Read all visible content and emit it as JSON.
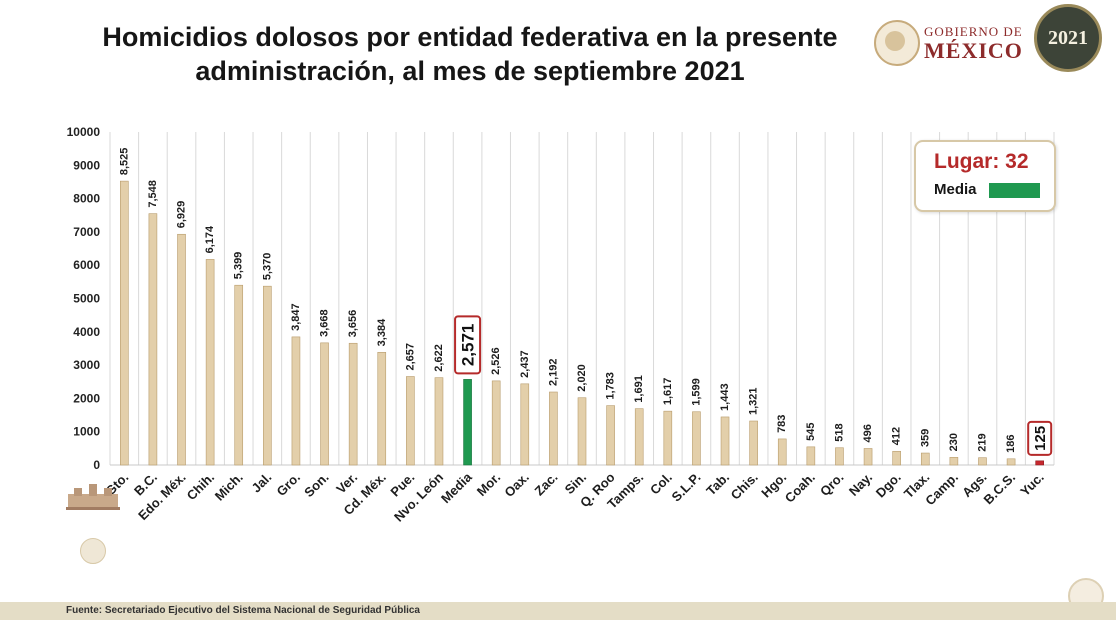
{
  "title": "Homicidios dolosos por entidad federativa en la presente administración, al mes de septiembre 2021",
  "header": {
    "gov_line1": "GOBIERNO DE",
    "gov_line2": "MÉXICO",
    "badge_year": "2021",
    "logo_icons": [
      "mexico-coat-of-arms-icon",
      "year-2021-badge-icon"
    ]
  },
  "legend": {
    "place_label": "Lugar: 32",
    "media_label": "Media"
  },
  "footer": {
    "source": "Fuente: Secretariado Ejecutivo del Sistema Nacional de Seguridad Pública"
  },
  "colors": {
    "bar": "#e3cfaa",
    "bar_border": "#b89c6c",
    "media": "#1f9950",
    "highlight": "#c6282e",
    "grid": "#d9d9d9",
    "title": "#161616",
    "brand": "#8d2b2b"
  },
  "chart_data": {
    "type": "bar",
    "title": "Homicidios dolosos por entidad federativa en la presente administración, al mes de septiembre 2021",
    "xlabel": "",
    "ylabel": "",
    "ylim": [
      0,
      10000
    ],
    "yticks": [
      "0",
      "1000",
      "2000",
      "3000",
      "4000",
      "5000",
      "6000",
      "7000",
      "8000",
      "9000",
      "10000"
    ],
    "grid": "vertical",
    "categories": [
      "Gto.",
      "B.C.",
      "Edo. Méx.",
      "Chih.",
      "Mich.",
      "Jal.",
      "Gro.",
      "Son.",
      "Ver.",
      "Cd. Méx.",
      "Pue.",
      "Nvo. León",
      "Media",
      "Mor.",
      "Oax.",
      "Zac.",
      "Sin.",
      "Q. Roo",
      "Tamps.",
      "Col.",
      "S.L.P.",
      "Tab.",
      "Chis.",
      "Hgo.",
      "Coah.",
      "Qro.",
      "Nay.",
      "Dgo.",
      "Tlax.",
      "Camp.",
      "Ags.",
      "B.C.S.",
      "Yuc."
    ],
    "values": [
      8525,
      7548,
      6929,
      6174,
      5399,
      5370,
      3847,
      3668,
      3656,
      3384,
      2657,
      2622,
      2571,
      2526,
      2437,
      2192,
      2020,
      1783,
      1691,
      1617,
      1599,
      1443,
      1321,
      783,
      545,
      518,
      496,
      412,
      359,
      230,
      219,
      186,
      125
    ],
    "value_labels": [
      "8,525",
      "7,548",
      "6,929",
      "6,174",
      "5,399",
      "5,370",
      "3,847",
      "3,668",
      "3,656",
      "3,384",
      "2,657",
      "2,622",
      "2,571",
      "2,526",
      "2,437",
      "2,192",
      "2,020",
      "1,783",
      "1,691",
      "1,617",
      "1,599",
      "1,443",
      "1,321",
      "783",
      "545",
      "518",
      "496",
      "412",
      "359",
      "230",
      "219",
      "186",
      "125"
    ],
    "media_category": "Media",
    "highlight_category": "Yuc.",
    "highlight_place": 32,
    "legend": [
      "Lugar: 32",
      "Media"
    ],
    "legend_position": "top-right"
  }
}
